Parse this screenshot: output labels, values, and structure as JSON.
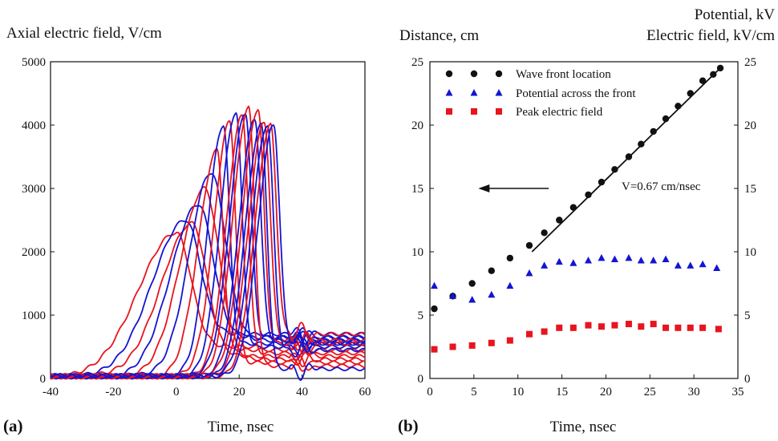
{
  "panel_a": {
    "label": "(a)",
    "title": "Axial electric field, V/cm",
    "xlabel": "Time, nsec"
  },
  "panel_b": {
    "label": "(b)",
    "left_title": "Distance, cm",
    "right_title_1": "Potential, kV",
    "right_title_2": "Electric field, kV/cm",
    "xlabel": "Time, nsec",
    "annotation": "V=0.67 cm/nsec"
  },
  "colors": {
    "red": "#e8141e",
    "blue": "#1414d2",
    "black": "#111111"
  },
  "chart_data": [
    {
      "type": "line",
      "title": "Axial electric field, V/cm",
      "xlabel": "Time, nsec",
      "ylabel": "",
      "xlim": [
        -40,
        60
      ],
      "ylim": [
        0,
        5000
      ],
      "x_ticks": [
        -40,
        -20,
        0,
        20,
        40,
        60
      ],
      "y_ticks": [
        0,
        1000,
        2000,
        3000,
        4000,
        5000
      ],
      "grid": false,
      "note": "Family of axial electric field waveforms, alternating red and blue",
      "series": [
        {
          "color": "red",
          "values": {
            "peak_time": 0,
            "peak": 2300,
            "tail": 500
          }
        },
        {
          "color": "blue",
          "values": {
            "peak_time": 3,
            "peak": 2500,
            "tail": 700
          }
        },
        {
          "color": "red",
          "values": {
            "peak_time": 5,
            "peak": 2450,
            "tail": 350
          }
        },
        {
          "color": "blue",
          "values": {
            "peak_time": 7,
            "peak": 2750,
            "tail": 650
          }
        },
        {
          "color": "red",
          "values": {
            "peak_time": 9,
            "peak": 3000,
            "tail": 300
          }
        },
        {
          "color": "blue",
          "values": {
            "peak_time": 11,
            "peak": 3250,
            "tail": 600
          }
        },
        {
          "color": "red",
          "values": {
            "peak_time": 13,
            "peak": 3600,
            "tail": 450
          }
        },
        {
          "color": "blue",
          "values": {
            "peak_time": 15,
            "peak": 4000,
            "tail": 550
          }
        },
        {
          "color": "red",
          "values": {
            "peak_time": 17,
            "peak": 4050,
            "tail": 250
          }
        },
        {
          "color": "blue",
          "values": {
            "peak_time": 19,
            "peak": 4200,
            "tail": 500
          }
        },
        {
          "color": "red",
          "values": {
            "peak_time": 21,
            "peak": 4150,
            "tail": 400
          }
        },
        {
          "color": "blue",
          "values": {
            "peak_time": 22,
            "peak": 4200,
            "tail": 650
          }
        },
        {
          "color": "red",
          "values": {
            "peak_time": 23,
            "peak": 4280,
            "tail": 200
          }
        },
        {
          "color": "blue",
          "values": {
            "peak_time": 25,
            "peak": 4100,
            "tail": 600
          }
        },
        {
          "color": "red",
          "values": {
            "peak_time": 26,
            "peak": 4250,
            "tail": 550
          }
        },
        {
          "color": "blue",
          "values": {
            "peak_time": 27,
            "peak": 4000,
            "tail": 150
          }
        },
        {
          "color": "red",
          "values": {
            "peak_time": 28,
            "peak": 4050,
            "tail": 600
          }
        },
        {
          "color": "blue",
          "values": {
            "peak_time": 29,
            "peak": 4000,
            "tail": 450
          }
        },
        {
          "color": "red",
          "values": {
            "peak_time": 30,
            "peak": 4000,
            "tail": 700
          }
        },
        {
          "color": "blue",
          "values": {
            "peak_time": 31,
            "peak": 4000,
            "tail": 550
          }
        }
      ]
    },
    {
      "type": "scatter",
      "xlabel": "Time, nsec",
      "ylabel": "Distance, cm",
      "y2label": "Potential, kV / Electric field, kV/cm",
      "xlim": [
        0,
        35
      ],
      "ylim": [
        0,
        25
      ],
      "y2lim": [
        0,
        25
      ],
      "x_ticks": [
        0,
        5,
        10,
        15,
        20,
        25,
        30,
        35
      ],
      "y_ticks": [
        0,
        5,
        10,
        15,
        20,
        25
      ],
      "grid": false,
      "legend_position": "top-left",
      "series": [
        {
          "name": "Wave front location",
          "marker": "circle",
          "color": "black",
          "x": [
            0.5,
            2.6,
            4.8,
            7.0,
            9.1,
            11.3,
            13.0,
            14.7,
            16.3,
            18.0,
            19.5,
            21.0,
            22.6,
            24.0,
            25.4,
            26.8,
            28.2,
            29.6,
            31.0,
            32.2,
            33.0
          ],
          "y": [
            5.5,
            6.5,
            7.5,
            8.5,
            9.5,
            10.5,
            11.5,
            12.5,
            13.5,
            14.5,
            15.5,
            16.5,
            17.5,
            18.5,
            19.5,
            20.5,
            21.5,
            22.5,
            23.5,
            24.0,
            24.5
          ]
        },
        {
          "name": "Potential across the front",
          "marker": "triangle",
          "color": "blue",
          "x": [
            0.5,
            2.6,
            4.8,
            7.0,
            9.1,
            11.3,
            13.0,
            14.7,
            16.3,
            18.0,
            19.5,
            21.0,
            22.6,
            24.0,
            25.4,
            26.8,
            28.2,
            29.6,
            31.0,
            32.6
          ],
          "y": [
            7.3,
            6.5,
            6.2,
            6.6,
            7.3,
            8.3,
            8.9,
            9.2,
            9.1,
            9.3,
            9.5,
            9.4,
            9.5,
            9.3,
            9.3,
            9.4,
            8.9,
            8.9,
            9.0,
            8.7
          ]
        },
        {
          "name": "Peak electric field",
          "marker": "square",
          "color": "red",
          "x": [
            0.5,
            2.6,
            4.8,
            7.0,
            9.1,
            11.3,
            13.0,
            14.7,
            16.3,
            18.0,
            19.5,
            21.0,
            22.6,
            24.0,
            25.4,
            26.8,
            28.2,
            29.6,
            31.0,
            32.8
          ],
          "y": [
            2.3,
            2.5,
            2.6,
            2.8,
            3.0,
            3.5,
            3.7,
            4.0,
            4.0,
            4.2,
            4.1,
            4.2,
            4.3,
            4.1,
            4.3,
            4.0,
            4.0,
            4.0,
            4.0,
            3.9
          ]
        }
      ],
      "fit_line": {
        "x": [
          11.6,
          33.0
        ],
        "y": [
          10.0,
          24.5
        ],
        "label": "V=0.67 cm/nsec"
      },
      "arrow": {
        "from_x": 13.5,
        "to_x": 5.5,
        "y": 15.0,
        "direction": "left"
      }
    }
  ]
}
